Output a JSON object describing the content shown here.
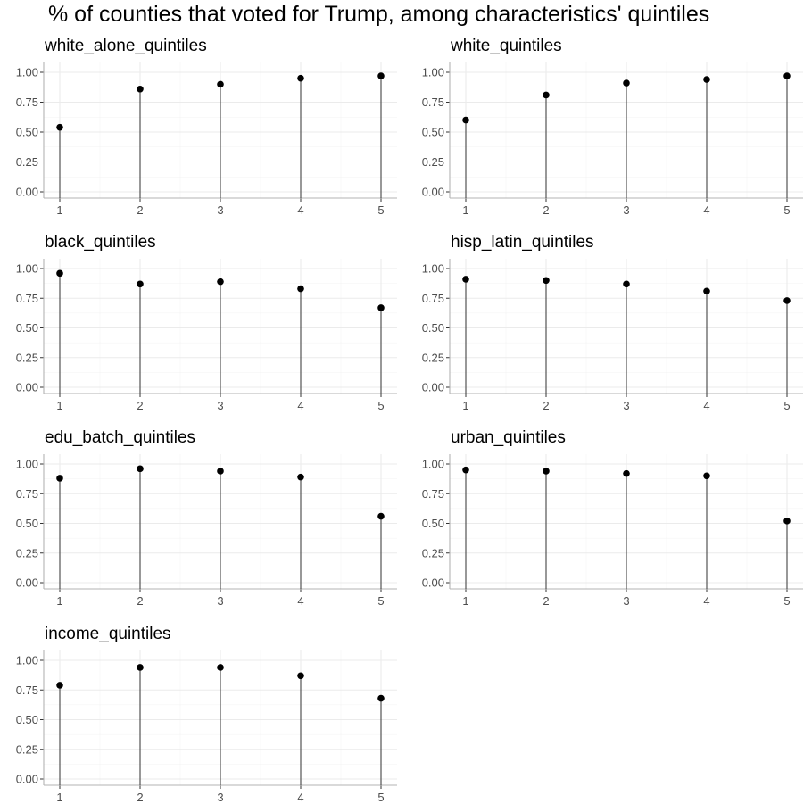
{
  "title": "% of counties that voted for Trump, among characteristics' quintiles",
  "chart_data": [
    {
      "type": "scatter",
      "title": "white_alone_quintiles",
      "x": [
        1,
        2,
        3,
        4,
        5
      ],
      "values": [
        0.54,
        0.86,
        0.9,
        0.95,
        0.97
      ],
      "ylim": [
        0,
        1
      ],
      "yticks": [
        "0.00",
        "0.25",
        "0.50",
        "0.75",
        "1.00"
      ],
      "xticks": [
        "1",
        "2",
        "3",
        "4",
        "5"
      ],
      "grid": true
    },
    {
      "type": "scatter",
      "title": "white_quintiles",
      "x": [
        1,
        2,
        3,
        4,
        5
      ],
      "values": [
        0.6,
        0.81,
        0.91,
        0.94,
        0.97
      ],
      "ylim": [
        0,
        1
      ],
      "yticks": [
        "0.00",
        "0.25",
        "0.50",
        "0.75",
        "1.00"
      ],
      "xticks": [
        "1",
        "2",
        "3",
        "4",
        "5"
      ],
      "grid": true
    },
    {
      "type": "scatter",
      "title": "black_quintiles",
      "x": [
        1,
        2,
        3,
        4,
        5
      ],
      "values": [
        0.96,
        0.87,
        0.89,
        0.83,
        0.67
      ],
      "ylim": [
        0,
        1
      ],
      "yticks": [
        "0.00",
        "0.25",
        "0.50",
        "0.75",
        "1.00"
      ],
      "xticks": [
        "1",
        "2",
        "3",
        "4",
        "5"
      ],
      "grid": true
    },
    {
      "type": "scatter",
      "title": "hisp_latin_quintiles",
      "x": [
        1,
        2,
        3,
        4,
        5
      ],
      "values": [
        0.91,
        0.9,
        0.87,
        0.81,
        0.73
      ],
      "ylim": [
        0,
        1
      ],
      "yticks": [
        "0.00",
        "0.25",
        "0.50",
        "0.75",
        "1.00"
      ],
      "xticks": [
        "1",
        "2",
        "3",
        "4",
        "5"
      ],
      "grid": true
    },
    {
      "type": "scatter",
      "title": "edu_batch_quintiles",
      "x": [
        1,
        2,
        3,
        4,
        5
      ],
      "values": [
        0.88,
        0.96,
        0.94,
        0.89,
        0.56
      ],
      "ylim": [
        0,
        1
      ],
      "yticks": [
        "0.00",
        "0.25",
        "0.50",
        "0.75",
        "1.00"
      ],
      "xticks": [
        "1",
        "2",
        "3",
        "4",
        "5"
      ],
      "grid": true
    },
    {
      "type": "scatter",
      "title": "urban_quintiles",
      "x": [
        1,
        2,
        3,
        4,
        5
      ],
      "values": [
        0.95,
        0.94,
        0.92,
        0.9,
        0.52
      ],
      "ylim": [
        0,
        1
      ],
      "yticks": [
        "0.00",
        "0.25",
        "0.50",
        "0.75",
        "1.00"
      ],
      "xticks": [
        "1",
        "2",
        "3",
        "4",
        "5"
      ],
      "grid": true
    },
    {
      "type": "scatter",
      "title": "income_quintiles",
      "x": [
        1,
        2,
        3,
        4,
        5
      ],
      "values": [
        0.79,
        0.94,
        0.94,
        0.87,
        0.68
      ],
      "ylim": [
        0,
        1
      ],
      "yticks": [
        "0.00",
        "0.25",
        "0.50",
        "0.75",
        "1.00"
      ],
      "xticks": [
        "1",
        "2",
        "3",
        "4",
        "5"
      ],
      "grid": true
    }
  ]
}
